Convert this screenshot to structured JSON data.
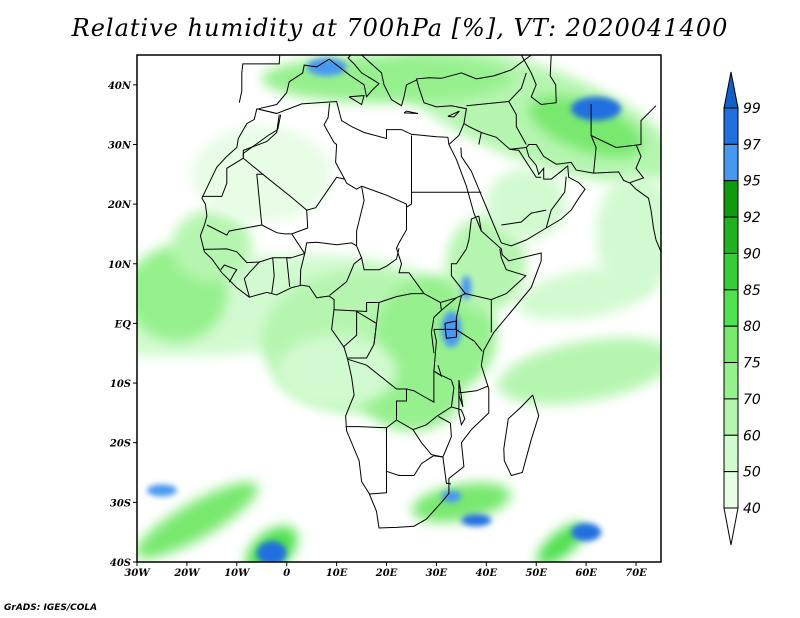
{
  "title": "Relative humidity at 700hPa [%], VT: 2020041400",
  "credit": "GrADS: IGES/COLA",
  "map": {
    "variable": "Relative humidity",
    "level": "700hPa",
    "units": "%",
    "valid_time": "2020041400",
    "lon_range": [
      -30,
      75
    ],
    "lat_range": [
      -40,
      45
    ],
    "lon_ticks": [
      {
        "value": -30,
        "label": "30W"
      },
      {
        "value": -20,
        "label": "20W"
      },
      {
        "value": -10,
        "label": "10W"
      },
      {
        "value": 0,
        "label": "0"
      },
      {
        "value": 10,
        "label": "10E"
      },
      {
        "value": 20,
        "label": "20E"
      },
      {
        "value": 30,
        "label": "30E"
      },
      {
        "value": 40,
        "label": "40E"
      },
      {
        "value": 50,
        "label": "50E"
      },
      {
        "value": 60,
        "label": "60E"
      },
      {
        "value": 70,
        "label": "70E"
      }
    ],
    "lat_ticks": [
      {
        "value": 40,
        "label": "40N"
      },
      {
        "value": 30,
        "label": "30N"
      },
      {
        "value": 20,
        "label": "20N"
      },
      {
        "value": 10,
        "label": "10N"
      },
      {
        "value": 0,
        "label": "EQ"
      },
      {
        "value": -10,
        "label": "10S"
      },
      {
        "value": -20,
        "label": "20S"
      },
      {
        "value": -30,
        "label": "30S"
      },
      {
        "value": -40,
        "label": "40S"
      }
    ]
  },
  "colorbar": {
    "levels": [
      "99",
      "97",
      "95",
      "92",
      "90",
      "85",
      "80",
      "75",
      "70",
      "60",
      "50",
      "40"
    ],
    "colors": [
      "#1060c8",
      "#2070e0",
      "#4898f0",
      "#109a10",
      "#20b020",
      "#38cc38",
      "#50e050",
      "#78e86e",
      "#96f08e",
      "#b6f5b0",
      "#d2fad0",
      "#e8fce6",
      "#ffffff"
    ]
  }
}
